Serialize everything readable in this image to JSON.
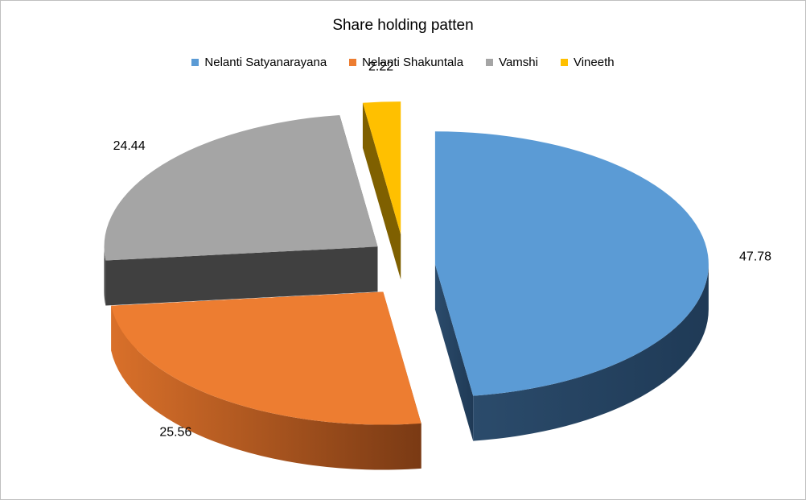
{
  "chart_data": {
    "type": "pie",
    "title": "Share holding patten",
    "legend_position": "top",
    "series": [
      {
        "name": "Nelanti Satyanarayana",
        "value": 47.78,
        "label": "47.78",
        "color": "#5B9BD5"
      },
      {
        "name": "Nelanti Shakuntala",
        "value": 25.56,
        "label": "25.56",
        "color": "#ED7D31"
      },
      {
        "name": "Vamshi",
        "value": 24.44,
        "label": "24.44",
        "color": "#A5A5A5"
      },
      {
        "name": "Vineeth",
        "value": 2.22,
        "label": "2.22",
        "color": "#FFC000"
      }
    ]
  }
}
